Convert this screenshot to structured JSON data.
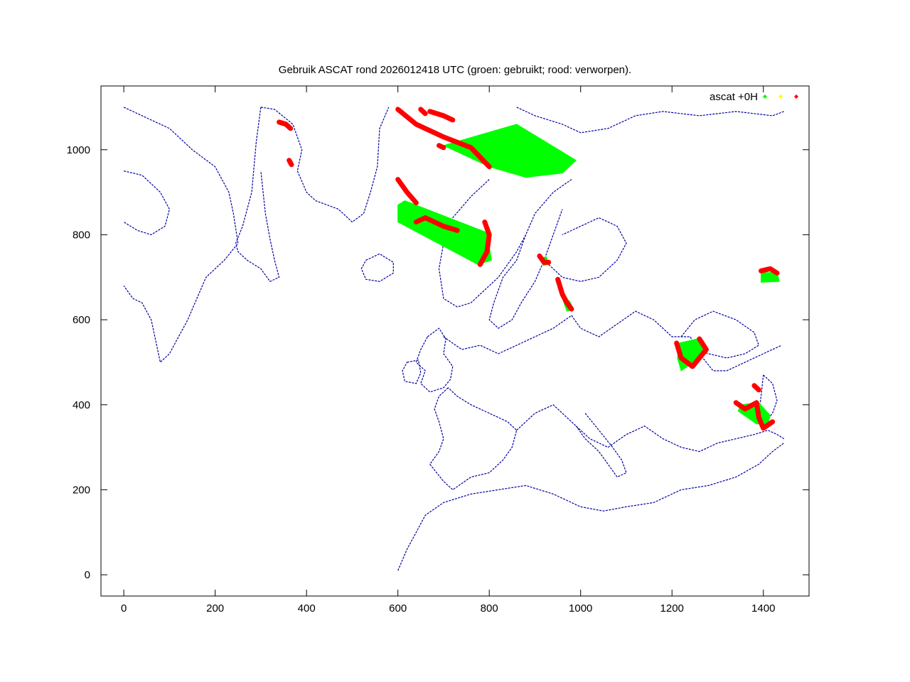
{
  "chart_data": {
    "type": "scatter",
    "title": "Gebruik ASCAT rond 2026012418 UTC (groen: gebruikt; rood: verworpen).",
    "xlabel": "",
    "ylabel": "",
    "xlim": [
      -50,
      1500
    ],
    "ylim": [
      -50,
      1150
    ],
    "x_ticks": [
      0,
      200,
      400,
      600,
      800,
      1000,
      1200,
      1400
    ],
    "y_ticks": [
      0,
      200,
      400,
      600,
      800,
      1000
    ],
    "x_tick_labels": [
      "0",
      "200",
      "400",
      "600",
      "800",
      "1000",
      "1200",
      "1400"
    ],
    "y_tick_labels": [
      "0",
      "200",
      "400",
      "600",
      "800",
      "1000"
    ],
    "grid": false,
    "legend_position": "top-right",
    "legend": {
      "label": "ascat +0H",
      "colors": [
        "#00ff00",
        "#ffff00",
        "#ff0000"
      ]
    },
    "coastline_color": "#0000a0",
    "series": [
      {
        "status": "used",
        "color": "#00ff00",
        "regions": [
          {
            "shape": "polygon",
            "points": [
              [
                700,
                1010
              ],
              [
                860,
                1060
              ],
              [
                990,
                975
              ],
              [
                960,
                945
              ],
              [
                880,
                935
              ],
              [
                800,
                960
              ]
            ]
          },
          {
            "shape": "polygon",
            "points": [
              [
                615,
                880
              ],
              [
                795,
                805
              ],
              [
                805,
                740
              ],
              [
                775,
                730
              ],
              [
                600,
                830
              ],
              [
                600,
                870
              ]
            ]
          },
          {
            "shape": "polygon",
            "points": [
              [
                1215,
                545
              ],
              [
                1255,
                555
              ],
              [
                1275,
                530
              ],
              [
                1240,
                495
              ],
              [
                1220,
                480
              ],
              [
                1212,
                510
              ]
            ]
          },
          {
            "shape": "polygon",
            "points": [
              [
                1350,
                400
              ],
              [
                1390,
                405
              ],
              [
                1415,
                375
              ],
              [
                1410,
                355
              ],
              [
                1385,
                355
              ],
              [
                1345,
                385
              ]
            ]
          },
          {
            "shape": "polygon",
            "points": [
              [
                1395,
                710
              ],
              [
                1430,
                712
              ],
              [
                1435,
                690
              ],
              [
                1395,
                688
              ]
            ]
          },
          {
            "shape": "polygon",
            "points": [
              [
                915,
                745
              ],
              [
                925,
                748
              ],
              [
                930,
                730
              ],
              [
                918,
                728
              ]
            ]
          },
          {
            "shape": "polygon",
            "points": [
              [
                960,
                650
              ],
              [
                975,
                645
              ],
              [
                985,
                625
              ],
              [
                970,
                620
              ]
            ]
          }
        ]
      },
      {
        "status": "rejected",
        "color": "#ff0000",
        "regions": [
          {
            "shape": "polyline",
            "points": [
              [
                600,
                1095
              ],
              [
                640,
                1060
              ],
              [
                700,
                1030
              ],
              [
                760,
                1005
              ],
              [
                800,
                960
              ]
            ]
          },
          {
            "shape": "polyline",
            "points": [
              [
                670,
                1090
              ],
              [
                700,
                1080
              ],
              [
                720,
                1070
              ]
            ]
          },
          {
            "shape": "polyline",
            "points": [
              [
                650,
                1095
              ],
              [
                660,
                1085
              ]
            ]
          },
          {
            "shape": "polyline",
            "points": [
              [
                690,
                1010
              ],
              [
                700,
                1005
              ]
            ]
          },
          {
            "shape": "polyline",
            "points": [
              [
                600,
                930
              ],
              [
                620,
                900
              ],
              [
                640,
                875
              ]
            ]
          },
          {
            "shape": "polyline",
            "points": [
              [
                640,
                830
              ],
              [
                660,
                840
              ],
              [
                700,
                820
              ],
              [
                730,
                810
              ]
            ]
          },
          {
            "shape": "polyline",
            "points": [
              [
                790,
                830
              ],
              [
                800,
                800
              ],
              [
                795,
                760
              ],
              [
                780,
                730
              ]
            ]
          },
          {
            "shape": "polyline",
            "points": [
              [
                340,
                1065
              ],
              [
                355,
                1060
              ],
              [
                365,
                1050
              ]
            ]
          },
          {
            "shape": "polyline",
            "points": [
              [
                362,
                975
              ],
              [
                367,
                965
              ]
            ]
          },
          {
            "shape": "polyline",
            "points": [
              [
                910,
                750
              ],
              [
                920,
                735
              ],
              [
                930,
                735
              ]
            ]
          },
          {
            "shape": "polyline",
            "points": [
              [
                950,
                695
              ],
              [
                960,
                660
              ],
              [
                970,
                640
              ],
              [
                980,
                625
              ]
            ]
          },
          {
            "shape": "polyline",
            "points": [
              [
                1210,
                545
              ],
              [
                1220,
                510
              ],
              [
                1245,
                490
              ],
              [
                1275,
                530
              ],
              [
                1260,
                555
              ]
            ]
          },
          {
            "shape": "polyline",
            "points": [
              [
                1340,
                405
              ],
              [
                1360,
                390
              ],
              [
                1385,
                405
              ],
              [
                1390,
                370
              ],
              [
                1400,
                345
              ],
              [
                1420,
                360
              ]
            ]
          },
          {
            "shape": "polyline",
            "points": [
              [
                1380,
                445
              ],
              [
                1390,
                435
              ]
            ]
          },
          {
            "shape": "polyline",
            "points": [
              [
                1395,
                715
              ],
              [
                1415,
                720
              ],
              [
                1430,
                710
              ]
            ]
          }
        ]
      }
    ]
  }
}
